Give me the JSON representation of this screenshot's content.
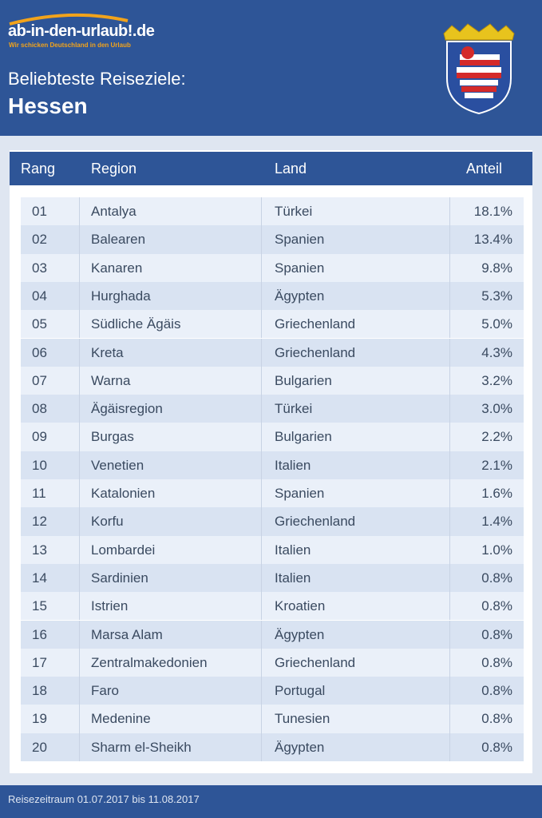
{
  "header": {
    "logo": "ab-in-den-urlaub!.de",
    "slogan": "Wir schicken Deutschland in den Urlaub",
    "subtitle": "Beliebteste Reiseziele:",
    "title": "Hessen"
  },
  "table": {
    "columns": [
      "Rang",
      "Region",
      "Land",
      "Anteil"
    ],
    "rows": [
      [
        "01",
        "Antalya",
        "Türkei",
        "18.1%"
      ],
      [
        "02",
        "Balearen",
        "Spanien",
        "13.4%"
      ],
      [
        "03",
        "Kanaren",
        "Spanien",
        "9.8%"
      ],
      [
        "04",
        "Hurghada",
        "Ägypten",
        "5.3%"
      ],
      [
        "05",
        "Südliche Ägäis",
        "Griechenland",
        "5.0%"
      ],
      [
        "06",
        "Kreta",
        "Griechenland",
        "4.3%"
      ],
      [
        "07",
        "Warna",
        "Bulgarien",
        "3.2%"
      ],
      [
        "08",
        "Ägäisregion",
        "Türkei",
        "3.0%"
      ],
      [
        "09",
        "Burgas",
        "Bulgarien",
        "2.2%"
      ],
      [
        "10",
        "Venetien",
        "Italien",
        "2.1%"
      ],
      [
        "11",
        "Katalonien",
        "Spanien",
        "1.6%"
      ],
      [
        "12",
        "Korfu",
        "Griechenland",
        "1.4%"
      ],
      [
        "13",
        "Lombardei",
        "Italien",
        "1.0%"
      ],
      [
        "14",
        "Sardinien",
        "Italien",
        "0.8%"
      ],
      [
        "15",
        "Istrien",
        "Kroatien",
        "0.8%"
      ],
      [
        "16",
        "Marsa Alam",
        "Ägypten",
        "0.8%"
      ],
      [
        "17",
        "Zentralmakedonien",
        "Griechenland",
        "0.8%"
      ],
      [
        "18",
        "Faro",
        "Portugal",
        "0.8%"
      ],
      [
        "19",
        "Medenine",
        "Tunesien",
        "0.8%"
      ],
      [
        "20",
        "Sharm el-Sheikh",
        "Ägypten",
        "0.8%"
      ]
    ]
  },
  "footer": {
    "note": "Reisezeitraum 01.07.2017 bis 11.08.2017"
  }
}
